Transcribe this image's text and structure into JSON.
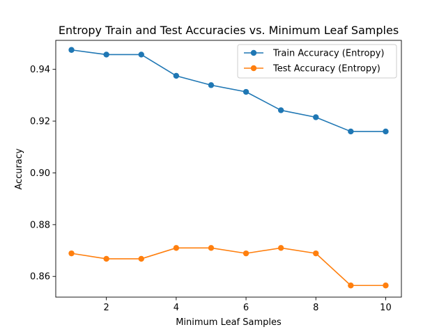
{
  "chart_data": {
    "type": "line",
    "title": "Entropy Train and Test Accuracies vs. Minimum Leaf Samples",
    "xlabel": "Minimum Leaf Samples",
    "ylabel": "Accuracy",
    "x": [
      1,
      2,
      3,
      4,
      5,
      6,
      7,
      8,
      9,
      10
    ],
    "xlim": [
      0.55,
      10.45
    ],
    "ylim": [
      0.852,
      0.9512
    ],
    "xticks": [
      2,
      4,
      6,
      8,
      10
    ],
    "yticks": [
      0.86,
      0.88,
      0.9,
      0.92,
      0.94
    ],
    "ytick_labels": [
      "0.86",
      "0.88",
      "0.90",
      "0.92",
      "0.94"
    ],
    "grid": false,
    "legend_position": "upper right",
    "series": [
      {
        "name": "Train Accuracy (Entropy)",
        "color": "#1f77b4",
        "marker": "circle",
        "values": [
          0.9475,
          0.9457,
          0.9457,
          0.9375,
          0.9339,
          0.9313,
          0.9242,
          0.9215,
          0.916,
          0.916
        ]
      },
      {
        "name": "Test Accuracy (Entropy)",
        "color": "#ff7f0e",
        "marker": "circle",
        "values": [
          0.8689,
          0.8668,
          0.8668,
          0.871,
          0.871,
          0.8689,
          0.871,
          0.8689,
          0.8565,
          0.8565
        ]
      }
    ]
  }
}
